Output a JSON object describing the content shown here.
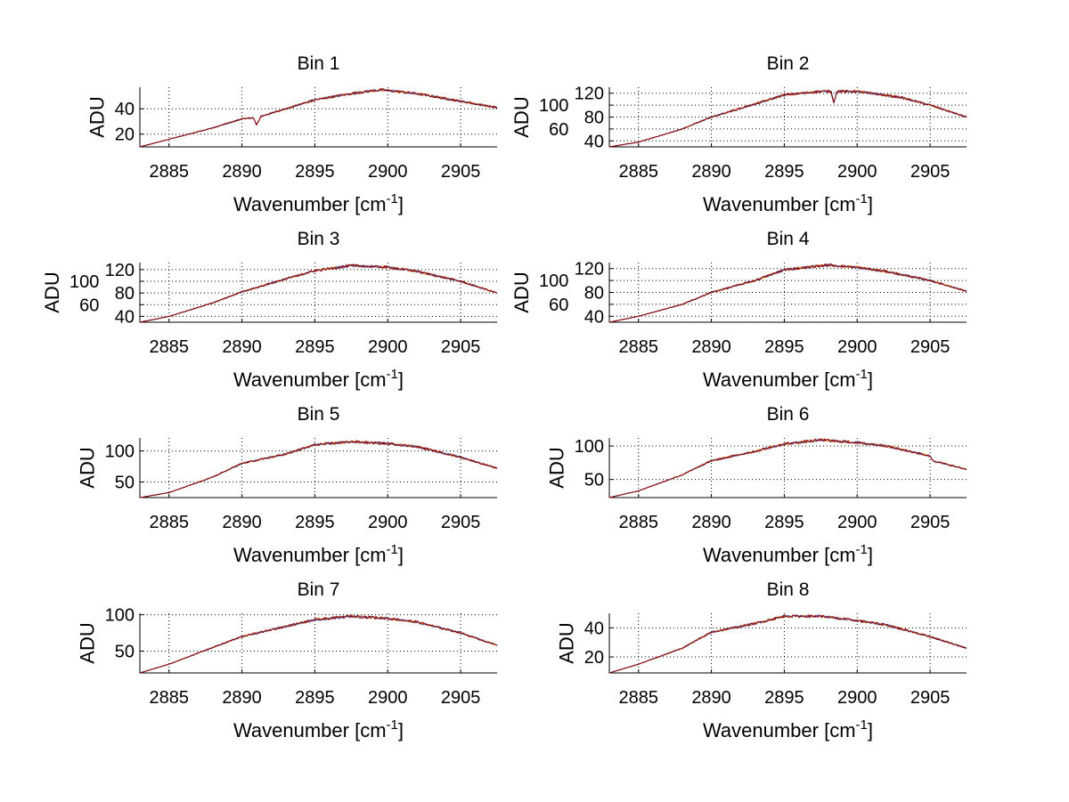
{
  "chart_data": {
    "type": "line",
    "layout": "4x2 subplots",
    "xlabel_parts": [
      "Wavenumber [cm",
      "-1",
      "]"
    ],
    "ylabel": "ADU",
    "xlim": [
      2883,
      2907.5
    ],
    "xticks": [
      2885,
      2890,
      2895,
      2900,
      2905
    ],
    "grid": true,
    "series_colors": [
      "#ff8c00",
      "#2030a0",
      "#8b0000"
    ],
    "panels": [
      {
        "title": "Bin 1",
        "ylim": [
          10,
          57
        ],
        "yticks": [
          20,
          40
        ],
        "x": [
          2883,
          2885,
          2888,
          2890,
          2890.8,
          2891,
          2891.3,
          2893,
          2895,
          2897.5,
          2899.5,
          2902,
          2905,
          2907.5
        ],
        "y": [
          10,
          16,
          25,
          32,
          33,
          27,
          34,
          40,
          47,
          52,
          55,
          52,
          46,
          41
        ]
      },
      {
        "title": "Bin 2",
        "ylim": [
          30,
          130
        ],
        "yticks": [
          40,
          60,
          80,
          100,
          120
        ],
        "x": [
          2883,
          2885,
          2888,
          2890,
          2893,
          2895,
          2897.5,
          2898.2,
          2898.4,
          2898.6,
          2900,
          2903,
          2905,
          2907.5
        ],
        "y": [
          30,
          38,
          60,
          80,
          102,
          117,
          123,
          123,
          104,
          123,
          123,
          113,
          100,
          80
        ]
      },
      {
        "title": "Bin 3",
        "ylim": [
          30,
          132
        ],
        "yticks": [
          40,
          60,
          80,
          100,
          120
        ],
        "x": [
          2883,
          2885,
          2888,
          2890,
          2893,
          2895,
          2897.5,
          2900,
          2902,
          2905,
          2907.5
        ],
        "y": [
          30,
          40,
          63,
          82,
          104,
          118,
          127,
          124,
          117,
          100,
          80
        ]
      },
      {
        "title": "Bin 4",
        "ylim": [
          30,
          130
        ],
        "yticks": [
          40,
          60,
          80,
          100,
          120
        ],
        "x": [
          2883,
          2885,
          2888,
          2890,
          2893,
          2895,
          2898,
          2900,
          2902,
          2905,
          2907.5
        ],
        "y": [
          30,
          40,
          60,
          80,
          100,
          118,
          126,
          122,
          115,
          100,
          82
        ]
      },
      {
        "title": "Bin 5",
        "ylim": [
          25,
          121
        ],
        "yticks": [
          50,
          100
        ],
        "x": [
          2883,
          2885,
          2888,
          2890,
          2893,
          2895,
          2897.5,
          2900,
          2902,
          2905,
          2907.5
        ],
        "y": [
          25,
          33,
          58,
          80,
          95,
          110,
          115,
          112,
          107,
          90,
          72
        ]
      },
      {
        "title": "Bin 6",
        "ylim": [
          23,
          112
        ],
        "yticks": [
          50,
          100
        ],
        "x": [
          2883,
          2885,
          2888,
          2890,
          2893,
          2895,
          2897.5,
          2900,
          2902,
          2905,
          2905.2,
          2907.5
        ],
        "y": [
          23,
          33,
          57,
          78,
          92,
          103,
          109,
          105,
          100,
          85,
          78,
          65
        ]
      },
      {
        "title": "Bin 7",
        "ylim": [
          20,
          102
        ],
        "yticks": [
          50,
          100
        ],
        "x": [
          2883,
          2885,
          2888,
          2890,
          2893,
          2895,
          2897.5,
          2900,
          2902,
          2905,
          2907.5
        ],
        "y": [
          20,
          32,
          55,
          70,
          84,
          93,
          98,
          95,
          90,
          75,
          58
        ]
      },
      {
        "title": "Bin 8",
        "ylim": [
          9,
          50
        ],
        "yticks": [
          20,
          40
        ],
        "x": [
          2883,
          2885,
          2888,
          2890,
          2893,
          2895,
          2897.5,
          2900,
          2902,
          2905,
          2907.5
        ],
        "y": [
          9,
          15,
          26,
          37,
          43,
          48,
          48,
          45,
          42,
          34,
          26
        ]
      }
    ]
  }
}
